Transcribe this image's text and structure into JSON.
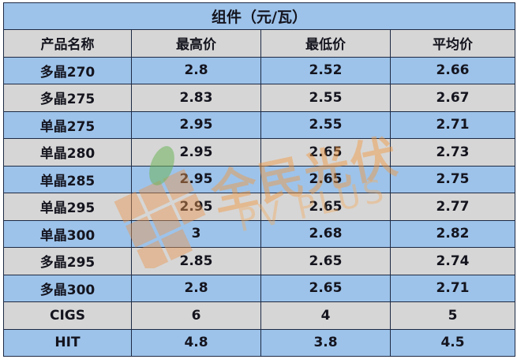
{
  "title": "组件（元/瓦）",
  "columns": [
    "产品名称",
    "最高价",
    "最低价",
    "平均价"
  ],
  "rows": [
    [
      "多晶270",
      "2.8",
      "2.52",
      "2.66"
    ],
    [
      "多晶275",
      "2.83",
      "2.55",
      "2.67"
    ],
    [
      "单晶275",
      "2.95",
      "2.55",
      "2.71"
    ],
    [
      "单晶280",
      "2.95",
      "2.65",
      "2.73"
    ],
    [
      "单晶285",
      "2.95",
      "2.65",
      "2.75"
    ],
    [
      "单晶295",
      "2.95",
      "2.65",
      "2.77"
    ],
    [
      "单晶300",
      "3",
      "2.68",
      "2.82"
    ],
    [
      "多晶295",
      "2.85",
      "2.65",
      "2.74"
    ],
    [
      "多晶300",
      "2.8",
      "2.65",
      "2.71"
    ],
    [
      "CIGS",
      "6",
      "4",
      "5"
    ],
    [
      "HIT",
      "4.8",
      "3.8",
      "4.5"
    ]
  ],
  "watermark": {
    "main": "全民光伏",
    "sub": "PV PLUS"
  },
  "colors": {
    "blue_row": "#9dc3ea",
    "gray_row": "#d6d6d6",
    "border": "#1d2a44",
    "watermark": "#f5963c"
  }
}
